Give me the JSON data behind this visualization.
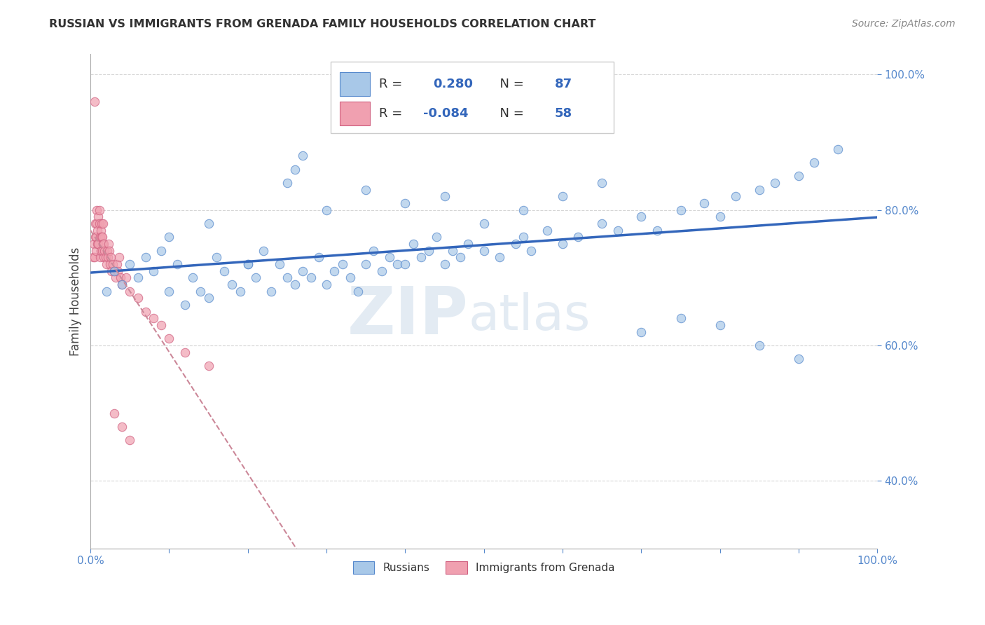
{
  "title": "RUSSIAN VS IMMIGRANTS FROM GRENADA FAMILY HOUSEHOLDS CORRELATION CHART",
  "source": "Source: ZipAtlas.com",
  "ylabel": "Family Households",
  "xlim": [
    0.0,
    1.0
  ],
  "ylim": [
    0.3,
    1.03
  ],
  "yticks": [
    0.4,
    0.6,
    0.8,
    1.0
  ],
  "ytick_labels": [
    "40.0%",
    "60.0%",
    "80.0%",
    "100.0%"
  ],
  "legend_label1": "Russians",
  "legend_label2": "Immigrants from Grenada",
  "R1": 0.28,
  "N1": 87,
  "R2": -0.084,
  "N2": 58,
  "blue_color": "#A8C8E8",
  "blue_edge_color": "#5588CC",
  "pink_color": "#F0A0B0",
  "pink_edge_color": "#D06080",
  "blue_line_color": "#3366BB",
  "pink_line_color": "#CC8899",
  "watermark_color": "#C8D8E8",
  "title_color": "#333333",
  "source_color": "#888888",
  "russians_x": [
    0.02,
    0.03,
    0.04,
    0.05,
    0.06,
    0.07,
    0.08,
    0.09,
    0.1,
    0.11,
    0.12,
    0.13,
    0.14,
    0.15,
    0.16,
    0.17,
    0.18,
    0.19,
    0.2,
    0.21,
    0.22,
    0.23,
    0.24,
    0.25,
    0.26,
    0.27,
    0.28,
    0.29,
    0.3,
    0.31,
    0.32,
    0.33,
    0.34,
    0.35,
    0.36,
    0.37,
    0.38,
    0.39,
    0.4,
    0.41,
    0.42,
    0.43,
    0.44,
    0.45,
    0.46,
    0.47,
    0.48,
    0.5,
    0.52,
    0.54,
    0.55,
    0.56,
    0.58,
    0.6,
    0.62,
    0.65,
    0.67,
    0.7,
    0.72,
    0.75,
    0.78,
    0.8,
    0.82,
    0.85,
    0.87,
    0.9,
    0.92,
    0.25,
    0.26,
    0.27,
    0.1,
    0.15,
    0.2,
    0.3,
    0.35,
    0.4,
    0.45,
    0.5,
    0.55,
    0.6,
    0.65,
    0.7,
    0.75,
    0.8,
    0.85,
    0.9,
    0.95
  ],
  "russians_y": [
    0.68,
    0.71,
    0.69,
    0.72,
    0.7,
    0.73,
    0.71,
    0.74,
    0.68,
    0.72,
    0.66,
    0.7,
    0.68,
    0.67,
    0.73,
    0.71,
    0.69,
    0.68,
    0.72,
    0.7,
    0.74,
    0.68,
    0.72,
    0.7,
    0.69,
    0.71,
    0.7,
    0.73,
    0.69,
    0.71,
    0.72,
    0.7,
    0.68,
    0.72,
    0.74,
    0.71,
    0.73,
    0.72,
    0.72,
    0.75,
    0.73,
    0.74,
    0.76,
    0.72,
    0.74,
    0.73,
    0.75,
    0.74,
    0.73,
    0.75,
    0.76,
    0.74,
    0.77,
    0.75,
    0.76,
    0.78,
    0.77,
    0.79,
    0.77,
    0.8,
    0.81,
    0.79,
    0.82,
    0.83,
    0.84,
    0.85,
    0.87,
    0.84,
    0.86,
    0.88,
    0.76,
    0.78,
    0.72,
    0.8,
    0.83,
    0.81,
    0.82,
    0.78,
    0.8,
    0.82,
    0.84,
    0.62,
    0.64,
    0.63,
    0.6,
    0.58,
    0.89
  ],
  "grenada_x": [
    0.003,
    0.004,
    0.005,
    0.006,
    0.006,
    0.007,
    0.007,
    0.008,
    0.008,
    0.009,
    0.009,
    0.01,
    0.01,
    0.011,
    0.011,
    0.012,
    0.012,
    0.013,
    0.013,
    0.014,
    0.014,
    0.015,
    0.015,
    0.016,
    0.016,
    0.017,
    0.017,
    0.018,
    0.019,
    0.02,
    0.021,
    0.022,
    0.023,
    0.024,
    0.025,
    0.026,
    0.027,
    0.028,
    0.03,
    0.032,
    0.034,
    0.035,
    0.036,
    0.038,
    0.04,
    0.045,
    0.05,
    0.06,
    0.07,
    0.08,
    0.09,
    0.1,
    0.12,
    0.15,
    0.03,
    0.04,
    0.05,
    0.005
  ],
  "grenada_y": [
    0.73,
    0.75,
    0.73,
    0.76,
    0.78,
    0.74,
    0.76,
    0.78,
    0.8,
    0.75,
    0.77,
    0.75,
    0.79,
    0.78,
    0.8,
    0.73,
    0.76,
    0.74,
    0.77,
    0.76,
    0.78,
    0.74,
    0.76,
    0.75,
    0.78,
    0.73,
    0.75,
    0.74,
    0.73,
    0.72,
    0.74,
    0.73,
    0.75,
    0.74,
    0.72,
    0.73,
    0.71,
    0.72,
    0.71,
    0.7,
    0.72,
    0.71,
    0.73,
    0.7,
    0.69,
    0.7,
    0.68,
    0.67,
    0.65,
    0.64,
    0.63,
    0.61,
    0.59,
    0.57,
    0.5,
    0.48,
    0.46,
    0.96
  ]
}
